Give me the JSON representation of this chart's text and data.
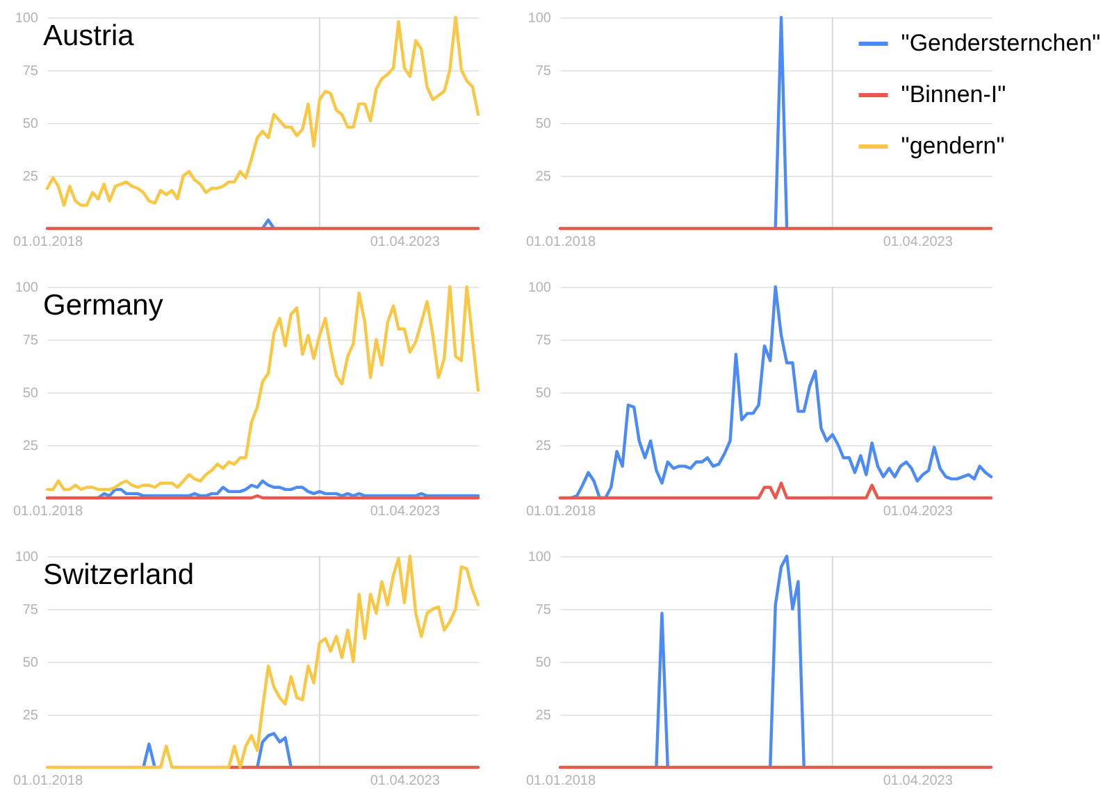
{
  "chart_data": [
    {
      "type": "line",
      "title": "Austria",
      "x": [
        "2018-01",
        "2018-02",
        "2018-03",
        "2018-04",
        "2018-05",
        "2018-06",
        "2018-07",
        "2018-08",
        "2018-09",
        "2018-10",
        "2018-11",
        "2018-12",
        "2019-01",
        "2019-02",
        "2019-03",
        "2019-04",
        "2019-05",
        "2019-06",
        "2019-07",
        "2019-08",
        "2019-09",
        "2019-10",
        "2019-11",
        "2019-12",
        "2020-01",
        "2020-02",
        "2020-03",
        "2020-04",
        "2020-05",
        "2020-06",
        "2020-07",
        "2020-08",
        "2020-09",
        "2020-10",
        "2020-11",
        "2020-12",
        "2021-01",
        "2021-02",
        "2021-03",
        "2021-04",
        "2021-05",
        "2021-06",
        "2021-07",
        "2021-08",
        "2021-09",
        "2021-10",
        "2021-11",
        "2021-12",
        "2022-01",
        "2022-02",
        "2022-03",
        "2022-04",
        "2022-05",
        "2022-06",
        "2022-07",
        "2022-08",
        "2022-09",
        "2022-10",
        "2022-11",
        "2022-12",
        "2023-01",
        "2023-02",
        "2023-03",
        "2023-04",
        "2023-05",
        "2023-06",
        "2023-07",
        "2023-08",
        "2023-09",
        "2023-10",
        "2023-11",
        "2023-12",
        "2024-01",
        "2024-02",
        "2024-03",
        "2024-04",
        "2024-05"
      ],
      "series": [
        {
          "name": "\"Gendersternchen\"",
          "color": "#4c8bf5",
          "values": [
            null,
            null,
            null,
            null,
            null,
            null,
            null,
            null,
            null,
            null,
            null,
            null,
            null,
            null,
            null,
            null,
            null,
            null,
            null,
            null,
            null,
            null,
            null,
            null,
            null,
            null,
            null,
            null,
            null,
            null,
            null,
            null,
            null,
            null,
            null,
            null,
            null,
            null,
            0,
            4,
            0,
            null,
            null,
            null,
            null,
            null,
            null,
            null,
            null,
            null,
            null,
            null,
            null,
            null,
            null,
            null,
            null,
            null,
            null,
            null,
            null,
            null,
            null,
            null,
            null,
            null,
            null,
            null,
            null,
            null,
            null,
            null,
            null,
            null,
            null,
            null,
            null
          ]
        },
        {
          "name": "\"Binnen-I\"",
          "color": "#e9574d",
          "values": [
            0,
            0,
            0,
            0,
            0,
            0,
            0,
            0,
            0,
            0,
            0,
            0,
            0,
            0,
            0,
            0,
            0,
            0,
            0,
            0,
            0,
            0,
            0,
            0,
            0,
            0,
            0,
            0,
            0,
            0,
            0,
            0,
            0,
            0,
            0,
            0,
            0,
            0,
            0,
            0,
            0,
            0,
            0,
            0,
            0,
            0,
            0,
            0,
            0,
            0,
            0,
            0,
            0,
            0,
            0,
            0,
            0,
            0,
            0,
            0,
            0,
            0,
            0,
            0,
            0,
            0,
            0,
            0,
            0,
            0,
            0,
            0,
            0,
            0,
            0,
            0,
            0
          ]
        },
        {
          "name": "\"gendern\"",
          "color": "#f9c744",
          "values": [
            19,
            24,
            20,
            11,
            20,
            13,
            11,
            11,
            17,
            14,
            21,
            13,
            20,
            21,
            22,
            20,
            19,
            17,
            13,
            12,
            18,
            16,
            18,
            14,
            25,
            27,
            23,
            21,
            17,
            19,
            19,
            20,
            22,
            22,
            27,
            24,
            33,
            43,
            46,
            43,
            54,
            51,
            48,
            48,
            44,
            47,
            59,
            39,
            61,
            65,
            64,
            56,
            54,
            48,
            48,
            59,
            59,
            51,
            66,
            71,
            73,
            76,
            98,
            76,
            72,
            89,
            85,
            67,
            61,
            63,
            65,
            75,
            100,
            75,
            70,
            67,
            54
          ]
        }
      ],
      "xlim": [
        "2018-01-01",
        "2024-05-01"
      ],
      "xticks": [
        {
          "value": "2018-01-01",
          "label": "01.01.2018"
        },
        {
          "value": "2023-04-01",
          "label": "01.04.2023"
        }
      ],
      "ylim": [
        0,
        100
      ],
      "yticks": [
        25,
        50,
        75,
        100
      ],
      "grid": "y",
      "ref_lines": [
        {
          "axis": "x",
          "value": "2022-01-01",
          "color": "#d9d9d9"
        }
      ],
      "legend": "right"
    },
    {
      "type": "line",
      "x": [
        "2018-01",
        "2018-02",
        "2018-03",
        "2018-04",
        "2018-05",
        "2018-06",
        "2018-07",
        "2018-08",
        "2018-09",
        "2018-10",
        "2018-11",
        "2018-12",
        "2019-01",
        "2019-02",
        "2019-03",
        "2019-04",
        "2019-05",
        "2019-06",
        "2019-07",
        "2019-08",
        "2019-09",
        "2019-10",
        "2019-11",
        "2019-12",
        "2020-01",
        "2020-02",
        "2020-03",
        "2020-04",
        "2020-05",
        "2020-06",
        "2020-07",
        "2020-08",
        "2020-09",
        "2020-10",
        "2020-11",
        "2020-12",
        "2021-01",
        "2021-02",
        "2021-03",
        "2021-04",
        "2021-05",
        "2021-06",
        "2021-07",
        "2021-08",
        "2021-09",
        "2021-10",
        "2021-11",
        "2021-12",
        "2022-01",
        "2022-02",
        "2022-03",
        "2022-04",
        "2022-05",
        "2022-06",
        "2022-07",
        "2022-08",
        "2022-09",
        "2022-10",
        "2022-11",
        "2022-12",
        "2023-01",
        "2023-02",
        "2023-03",
        "2023-04",
        "2023-05",
        "2023-06",
        "2023-07",
        "2023-08",
        "2023-09",
        "2023-10",
        "2023-11",
        "2023-12",
        "2024-01",
        "2024-02",
        "2024-03",
        "2024-04",
        "2024-05"
      ],
      "series": [
        {
          "color": "#4c8bf5",
          "values": [
            null,
            null,
            null,
            null,
            null,
            null,
            null,
            null,
            null,
            null,
            null,
            null,
            null,
            null,
            null,
            null,
            null,
            null,
            null,
            null,
            null,
            null,
            null,
            null,
            null,
            null,
            null,
            null,
            null,
            null,
            null,
            null,
            null,
            null,
            null,
            null,
            null,
            null,
            0,
            100,
            0,
            null,
            null,
            null,
            null,
            null,
            null,
            null,
            null,
            null,
            null,
            null,
            null,
            null,
            null,
            null,
            null,
            null,
            null,
            null,
            null,
            null,
            null,
            null,
            null,
            null,
            null,
            null,
            null,
            null,
            null,
            null,
            null,
            null,
            null,
            null,
            null
          ]
        },
        {
          "color": "#e9574d",
          "values": [
            0,
            0,
            0,
            0,
            0,
            0,
            0,
            0,
            0,
            0,
            0,
            0,
            0,
            0,
            0,
            0,
            0,
            0,
            0,
            0,
            0,
            0,
            0,
            0,
            0,
            0,
            0,
            0,
            0,
            0,
            0,
            0,
            0,
            0,
            0,
            0,
            0,
            0,
            0,
            0,
            0,
            0,
            0,
            0,
            0,
            0,
            0,
            0,
            0,
            0,
            0,
            0,
            0,
            0,
            0,
            0,
            0,
            0,
            0,
            0,
            0,
            0,
            0,
            0,
            0,
            0,
            0,
            0,
            0,
            0,
            0,
            0,
            0,
            0,
            0,
            0,
            0
          ]
        }
      ],
      "xlim": [
        "2018-01-01",
        "2024-05-01"
      ],
      "xticks": [
        {
          "value": "2018-01-01",
          "label": "01.01.2018"
        },
        {
          "value": "2023-04-01",
          "label": "01.04.2023"
        }
      ],
      "ylim": [
        0,
        100
      ],
      "yticks": [
        25,
        50,
        75,
        100
      ],
      "grid": "y",
      "ref_lines": [
        {
          "axis": "x",
          "value": "2022-01-01",
          "color": "#d9d9d9"
        }
      ]
    },
    {
      "type": "line",
      "title": "Germany",
      "x": [
        "2018-01",
        "2018-02",
        "2018-03",
        "2018-04",
        "2018-05",
        "2018-06",
        "2018-07",
        "2018-08",
        "2018-09",
        "2018-10",
        "2018-11",
        "2018-12",
        "2019-01",
        "2019-02",
        "2019-03",
        "2019-04",
        "2019-05",
        "2019-06",
        "2019-07",
        "2019-08",
        "2019-09",
        "2019-10",
        "2019-11",
        "2019-12",
        "2020-01",
        "2020-02",
        "2020-03",
        "2020-04",
        "2020-05",
        "2020-06",
        "2020-07",
        "2020-08",
        "2020-09",
        "2020-10",
        "2020-11",
        "2020-12",
        "2021-01",
        "2021-02",
        "2021-03",
        "2021-04",
        "2021-05",
        "2021-06",
        "2021-07",
        "2021-08",
        "2021-09",
        "2021-10",
        "2021-11",
        "2021-12",
        "2022-01",
        "2022-02",
        "2022-03",
        "2022-04",
        "2022-05",
        "2022-06",
        "2022-07",
        "2022-08",
        "2022-09",
        "2022-10",
        "2022-11",
        "2022-12",
        "2023-01",
        "2023-02",
        "2023-03",
        "2023-04",
        "2023-05",
        "2023-06",
        "2023-07",
        "2023-08",
        "2023-09",
        "2023-10",
        "2023-11",
        "2023-12",
        "2024-01",
        "2024-02",
        "2024-03",
        "2024-04",
        "2024-05"
      ],
      "series": [
        {
          "color": "#4c8bf5",
          "values": [
            null,
            null,
            null,
            null,
            null,
            null,
            null,
            null,
            null,
            0,
            2,
            1,
            4,
            4,
            2,
            2,
            2,
            1,
            1,
            1,
            1,
            1,
            1,
            1,
            1,
            1,
            2,
            1,
            1,
            2,
            2,
            5,
            3,
            3,
            3,
            4,
            6,
            5,
            8,
            6,
            5,
            5,
            4,
            4,
            5,
            5,
            3,
            2,
            3,
            2,
            2,
            2,
            1,
            2,
            1,
            2,
            1,
            1,
            1,
            1,
            1,
            1,
            1,
            1,
            1,
            1,
            2,
            1,
            1,
            1,
            1,
            1,
            1,
            1,
            1,
            1,
            1
          ]
        },
        {
          "color": "#e9574d",
          "values": [
            0,
            0,
            0,
            0,
            0,
            0,
            0,
            0,
            0,
            0,
            0,
            0,
            0,
            0,
            0,
            0,
            0,
            0,
            0,
            0,
            0,
            0,
            0,
            0,
            0,
            0,
            0,
            0,
            0,
            0,
            0,
            0,
            0,
            0,
            0,
            0,
            0,
            1,
            0,
            0,
            0,
            0,
            0,
            0,
            0,
            0,
            0,
            0,
            0,
            0,
            0,
            0,
            0,
            0,
            0,
            0,
            0,
            0,
            0,
            0,
            0,
            0,
            0,
            0,
            0,
            0,
            0,
            0,
            0,
            0,
            0,
            0,
            0,
            0,
            0,
            0,
            0
          ]
        },
        {
          "color": "#f9c744",
          "values": [
            4,
            4,
            8,
            4,
            4,
            6,
            4,
            5,
            5,
            4,
            4,
            4,
            5,
            7,
            8,
            6,
            5,
            6,
            6,
            5,
            7,
            7,
            7,
            5,
            8,
            11,
            9,
            8,
            11,
            13,
            16,
            14,
            17,
            16,
            19,
            19,
            36,
            43,
            55,
            59,
            78,
            85,
            72,
            87,
            90,
            68,
            77,
            66,
            77,
            85,
            71,
            58,
            54,
            67,
            73,
            97,
            83,
            57,
            75,
            63,
            83,
            91,
            80,
            80,
            69,
            74,
            83,
            93,
            77,
            57,
            66,
            100,
            67,
            65,
            100,
            75,
            51
          ]
        }
      ],
      "xlim": [
        "2018-01-01",
        "2024-05-01"
      ],
      "xticks": [
        {
          "value": "2018-01-01",
          "label": "01.01.2018"
        },
        {
          "value": "2023-04-01",
          "label": "01.04.2023"
        }
      ],
      "ylim": [
        0,
        100
      ],
      "yticks": [
        25,
        50,
        75,
        100
      ],
      "grid": "y",
      "ref_lines": [
        {
          "axis": "x",
          "value": "2022-01-01",
          "color": "#d9d9d9"
        }
      ]
    },
    {
      "type": "line",
      "x": [
        "2018-01",
        "2018-02",
        "2018-03",
        "2018-04",
        "2018-05",
        "2018-06",
        "2018-07",
        "2018-08",
        "2018-09",
        "2018-10",
        "2018-11",
        "2018-12",
        "2019-01",
        "2019-02",
        "2019-03",
        "2019-04",
        "2019-05",
        "2019-06",
        "2019-07",
        "2019-08",
        "2019-09",
        "2019-10",
        "2019-11",
        "2019-12",
        "2020-01",
        "2020-02",
        "2020-03",
        "2020-04",
        "2020-05",
        "2020-06",
        "2020-07",
        "2020-08",
        "2020-09",
        "2020-10",
        "2020-11",
        "2020-12",
        "2021-01",
        "2021-02",
        "2021-03",
        "2021-04",
        "2021-05",
        "2021-06",
        "2021-07",
        "2021-08",
        "2021-09",
        "2021-10",
        "2021-11",
        "2021-12",
        "2022-01",
        "2022-02",
        "2022-03",
        "2022-04",
        "2022-05",
        "2022-06",
        "2022-07",
        "2022-08",
        "2022-09",
        "2022-10",
        "2022-11",
        "2022-12",
        "2023-01",
        "2023-02",
        "2023-03",
        "2023-04",
        "2023-05",
        "2023-06",
        "2023-07",
        "2023-08",
        "2023-09",
        "2023-10",
        "2023-11",
        "2023-12",
        "2024-01",
        "2024-02",
        "2024-03",
        "2024-04",
        "2024-05"
      ],
      "series": [
        {
          "color": "#4c8bf5",
          "values": [
            null,
            null,
            0,
            1,
            6,
            12,
            8,
            0,
            0,
            5,
            22,
            15,
            44,
            43,
            27,
            19,
            27,
            13,
            7,
            17,
            14,
            15,
            15,
            14,
            17,
            17,
            19,
            15,
            16,
            21,
            27,
            68,
            37,
            40,
            40,
            44,
            72,
            65,
            100,
            77,
            64,
            64,
            41,
            41,
            53,
            60,
            33,
            27,
            30,
            25,
            19,
            19,
            12,
            20,
            11,
            26,
            15,
            10,
            14,
            10,
            15,
            17,
            14,
            8,
            11,
            13,
            24,
            14,
            10,
            9,
            9,
            10,
            11,
            9,
            15,
            12,
            10
          ]
        },
        {
          "color": "#e9574d",
          "values": [
            0,
            0,
            0,
            0,
            0,
            0,
            0,
            0,
            0,
            0,
            0,
            0,
            0,
            0,
            0,
            0,
            0,
            0,
            0,
            0,
            0,
            0,
            0,
            0,
            0,
            0,
            0,
            0,
            0,
            0,
            0,
            0,
            0,
            0,
            0,
            0,
            5,
            5,
            0,
            7,
            0,
            0,
            0,
            0,
            0,
            0,
            0,
            0,
            0,
            0,
            0,
            0,
            0,
            0,
            0,
            6,
            0,
            0,
            0,
            0,
            0,
            0,
            0,
            0,
            0,
            0,
            0,
            0,
            0,
            0,
            0,
            0,
            0,
            0,
            0,
            0,
            0
          ]
        }
      ],
      "xlim": [
        "2018-01-01",
        "2024-05-01"
      ],
      "xticks": [
        {
          "value": "2018-01-01",
          "label": "01.01.2018"
        },
        {
          "value": "2023-04-01",
          "label": "01.04.2023"
        }
      ],
      "ylim": [
        0,
        100
      ],
      "yticks": [
        25,
        50,
        75,
        100
      ],
      "grid": "y",
      "ref_lines": [
        {
          "axis": "x",
          "value": "2022-01-01",
          "color": "#d9d9d9"
        }
      ]
    },
    {
      "type": "line",
      "title": "Switzerland",
      "x": [
        "2018-01",
        "2018-02",
        "2018-03",
        "2018-04",
        "2018-05",
        "2018-06",
        "2018-07",
        "2018-08",
        "2018-09",
        "2018-10",
        "2018-11",
        "2018-12",
        "2019-01",
        "2019-02",
        "2019-03",
        "2019-04",
        "2019-05",
        "2019-06",
        "2019-07",
        "2019-08",
        "2019-09",
        "2019-10",
        "2019-11",
        "2019-12",
        "2020-01",
        "2020-02",
        "2020-03",
        "2020-04",
        "2020-05",
        "2020-06",
        "2020-07",
        "2020-08",
        "2020-09",
        "2020-10",
        "2020-11",
        "2020-12",
        "2021-01",
        "2021-02",
        "2021-03",
        "2021-04",
        "2021-05",
        "2021-06",
        "2021-07",
        "2021-08",
        "2021-09",
        "2021-10",
        "2021-11",
        "2021-12",
        "2022-01",
        "2022-02",
        "2022-03",
        "2022-04",
        "2022-05",
        "2022-06",
        "2022-07",
        "2022-08",
        "2022-09",
        "2022-10",
        "2022-11",
        "2022-12",
        "2023-01",
        "2023-02",
        "2023-03",
        "2023-04",
        "2023-05",
        "2023-06",
        "2023-07",
        "2023-08",
        "2023-09",
        "2023-10",
        "2023-11",
        "2023-12",
        "2024-01",
        "2024-02",
        "2024-03",
        "2024-04",
        "2024-05"
      ],
      "series": [
        {
          "color": "#4c8bf5",
          "values": [
            null,
            null,
            null,
            null,
            null,
            null,
            null,
            null,
            null,
            null,
            null,
            null,
            null,
            null,
            null,
            null,
            null,
            0,
            11,
            0,
            null,
            null,
            null,
            null,
            null,
            null,
            null,
            null,
            null,
            null,
            null,
            null,
            null,
            null,
            null,
            null,
            null,
            0,
            12,
            15,
            16,
            12,
            14,
            0,
            null,
            null,
            null,
            null,
            null,
            null,
            null,
            null,
            null,
            null,
            null,
            null,
            null,
            null,
            null,
            null,
            null,
            null,
            null,
            null,
            null,
            null,
            null,
            null,
            null,
            null,
            null,
            null,
            null,
            null,
            null,
            null,
            null
          ]
        },
        {
          "color": "#e9574d",
          "values": [
            null,
            null,
            null,
            null,
            null,
            null,
            null,
            null,
            null,
            null,
            null,
            null,
            null,
            null,
            null,
            null,
            null,
            null,
            null,
            null,
            null,
            null,
            null,
            null,
            null,
            null,
            null,
            null,
            null,
            null,
            null,
            null,
            0,
            0,
            0,
            0,
            0,
            0,
            0,
            0,
            0,
            0,
            0,
            0,
            0,
            0,
            0,
            0,
            0,
            0,
            0,
            0,
            0,
            0,
            0,
            0,
            0,
            0,
            0,
            0,
            0,
            0,
            0,
            0,
            0,
            0,
            0,
            0,
            0,
            0,
            0,
            0,
            0,
            0,
            0,
            0,
            0
          ]
        },
        {
          "color": "#f9c744",
          "values": [
            0,
            0,
            0,
            0,
            0,
            0,
            0,
            0,
            0,
            0,
            0,
            0,
            0,
            0,
            0,
            0,
            0,
            0,
            0,
            0,
            0,
            10,
            0,
            0,
            0,
            0,
            0,
            0,
            0,
            0,
            0,
            0,
            0,
            10,
            0,
            10,
            15,
            8,
            28,
            48,
            38,
            33,
            30,
            43,
            33,
            32,
            48,
            40,
            59,
            61,
            55,
            62,
            52,
            65,
            50,
            82,
            61,
            82,
            73,
            88,
            77,
            91,
            99,
            78,
            100,
            73,
            62,
            73,
            75,
            76,
            65,
            69,
            75,
            95,
            94,
            84,
            77
          ]
        }
      ],
      "xlim": [
        "2018-01-01",
        "2024-05-01"
      ],
      "xticks": [
        {
          "value": "2018-01-01",
          "label": "01.01.2018"
        },
        {
          "value": "2023-04-01",
          "label": "01.04.2023"
        }
      ],
      "ylim": [
        0,
        100
      ],
      "yticks": [
        25,
        50,
        75,
        100
      ],
      "grid": "y",
      "ref_lines": [
        {
          "axis": "x",
          "value": "2022-01-01",
          "color": "#d9d9d9"
        }
      ]
    },
    {
      "type": "line",
      "x": [
        "2018-01",
        "2018-02",
        "2018-03",
        "2018-04",
        "2018-05",
        "2018-06",
        "2018-07",
        "2018-08",
        "2018-09",
        "2018-10",
        "2018-11",
        "2018-12",
        "2019-01",
        "2019-02",
        "2019-03",
        "2019-04",
        "2019-05",
        "2019-06",
        "2019-07",
        "2019-08",
        "2019-09",
        "2019-10",
        "2019-11",
        "2019-12",
        "2020-01",
        "2020-02",
        "2020-03",
        "2020-04",
        "2020-05",
        "2020-06",
        "2020-07",
        "2020-08",
        "2020-09",
        "2020-10",
        "2020-11",
        "2020-12",
        "2021-01",
        "2021-02",
        "2021-03",
        "2021-04",
        "2021-05",
        "2021-06",
        "2021-07",
        "2021-08",
        "2021-09",
        "2021-10",
        "2021-11",
        "2021-12",
        "2022-01",
        "2022-02",
        "2022-03",
        "2022-04",
        "2022-05",
        "2022-06",
        "2022-07",
        "2022-08",
        "2022-09",
        "2022-10",
        "2022-11",
        "2022-12",
        "2023-01",
        "2023-02",
        "2023-03",
        "2023-04",
        "2023-05",
        "2023-06",
        "2023-07",
        "2023-08",
        "2023-09",
        "2023-10",
        "2023-11",
        "2023-12",
        "2024-01",
        "2024-02",
        "2024-03",
        "2024-04",
        "2024-05"
      ],
      "series": [
        {
          "color": "#4c8bf5",
          "values": [
            null,
            null,
            null,
            null,
            null,
            null,
            null,
            null,
            null,
            null,
            null,
            null,
            null,
            null,
            null,
            null,
            null,
            0,
            73,
            0,
            null,
            null,
            null,
            null,
            null,
            null,
            null,
            null,
            null,
            null,
            null,
            null,
            null,
            null,
            null,
            null,
            null,
            0,
            77,
            95,
            100,
            75,
            88,
            0,
            null,
            null,
            null,
            null,
            null,
            null,
            null,
            null,
            null,
            null,
            null,
            null,
            null,
            null,
            null,
            null,
            null,
            null,
            null,
            null,
            null,
            null,
            null,
            null,
            null,
            null,
            null,
            null,
            null,
            null,
            null,
            null,
            null
          ]
        },
        {
          "color": "#e9574d",
          "values": [
            0,
            0,
            0,
            0,
            0,
            0,
            0,
            0,
            0,
            0,
            0,
            0,
            0,
            0,
            0,
            0,
            0,
            0,
            0,
            0,
            0,
            0,
            0,
            0,
            0,
            0,
            0,
            0,
            0,
            0,
            0,
            0,
            0,
            0,
            0,
            0,
            0,
            0,
            0,
            0,
            0,
            0,
            0,
            0,
            0,
            0,
            0,
            0,
            0,
            0,
            0,
            0,
            0,
            0,
            0,
            0,
            0,
            0,
            0,
            0,
            0,
            0,
            0,
            0,
            0,
            0,
            0,
            0,
            0,
            0,
            0,
            0,
            0,
            0,
            0,
            0,
            0
          ]
        }
      ],
      "xlim": [
        "2018-01-01",
        "2024-05-01"
      ],
      "xticks": [
        {
          "value": "2018-01-01",
          "label": "01.01.2018"
        },
        {
          "value": "2023-04-01",
          "label": "01.04.2023"
        }
      ],
      "ylim": [
        0,
        100
      ],
      "yticks": [
        25,
        50,
        75,
        100
      ],
      "grid": "y",
      "ref_lines": [
        {
          "axis": "x",
          "value": "2022-01-01",
          "color": "#d9d9d9"
        }
      ]
    }
  ]
}
